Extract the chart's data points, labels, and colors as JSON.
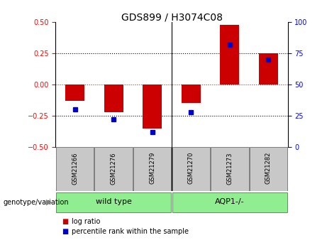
{
  "title": "GDS899 / H3074C08",
  "samples": [
    "GSM21266",
    "GSM21276",
    "GSM21279",
    "GSM21270",
    "GSM21273",
    "GSM21282"
  ],
  "log_ratios": [
    -0.13,
    -0.22,
    -0.355,
    -0.15,
    0.48,
    0.25
  ],
  "percentile_ranks": [
    30,
    22,
    12,
    28,
    82,
    70
  ],
  "bar_color": "#CC0000",
  "dot_color": "#0000CC",
  "ylim_left": [
    -0.5,
    0.5
  ],
  "ylim_right": [
    0,
    100
  ],
  "yticks_left": [
    -0.5,
    -0.25,
    0,
    0.25,
    0.5
  ],
  "yticks_right": [
    0,
    25,
    50,
    75,
    100
  ],
  "hlines_black": [
    -0.25,
    0.25
  ],
  "hline_red": 0,
  "group_sample_bg": "#c8c8c8",
  "group_wt_color": "#90EE90",
  "group_aqp_color": "#90EE90",
  "separator_after": 2,
  "legend_log_ratio": "log ratio",
  "legend_percentile": "percentile rank within the sample",
  "genotype_label": "genotype/variation",
  "bar_width": 0.5,
  "title_fontsize": 10,
  "tick_fontsize": 7,
  "label_fontsize": 6,
  "group_fontsize": 8
}
